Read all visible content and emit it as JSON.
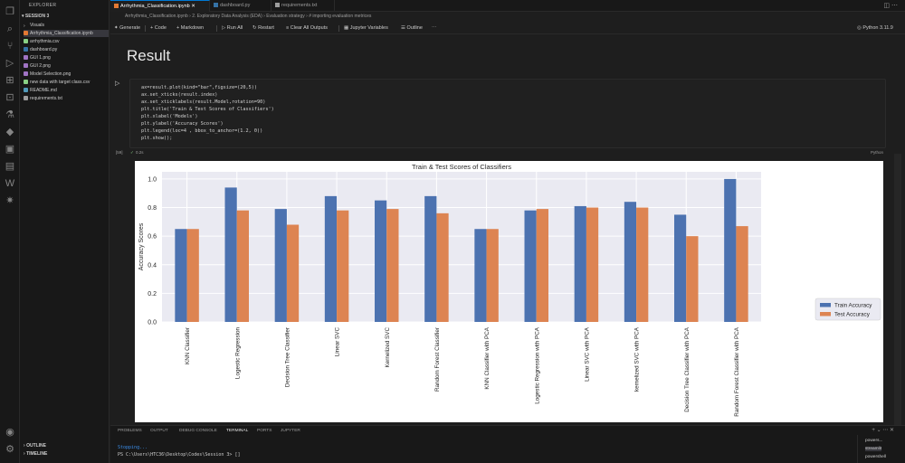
{
  "explorer": {
    "title": "EXPLORER",
    "section": "SESSION 3",
    "items": [
      {
        "label": "Visuals",
        "type": "folder"
      },
      {
        "label": "Arrhythmia_Classification.ipynb",
        "type": "notebook"
      },
      {
        "label": "arrhythmia.csv",
        "type": "csv"
      },
      {
        "label": "dashboard.py",
        "type": "python"
      },
      {
        "label": "GUI 1.png",
        "type": "image"
      },
      {
        "label": "GUI 2.png",
        "type": "image"
      },
      {
        "label": "Model Selection.png",
        "type": "image"
      },
      {
        "label": "new data with target class.csv",
        "type": "csv"
      },
      {
        "label": "README.md",
        "type": "markdown"
      },
      {
        "label": "requirements.txt",
        "type": "text"
      }
    ],
    "outline": "OUTLINE",
    "timeline": "TIMELINE"
  },
  "tabs": [
    {
      "label": "Arrhythmia_Classification.ipynb",
      "active": true
    },
    {
      "label": "dashboard.py",
      "active": false
    },
    {
      "label": "requirements.txt",
      "active": false
    }
  ],
  "breadcrumb": {
    "file": "Arrhythmia_Classification.ipynb",
    "section": "2. Exploratory Data Analysis (EDA)",
    "sub": "Evaluation strategy",
    "cell": "# importing evaluation metrices"
  },
  "toolbar": {
    "generate": "Generate",
    "code": "+ Code",
    "markdown": "+ Markdown",
    "run_all": "Run All",
    "restart": "Restart",
    "clear": "Clear All Outputs",
    "variables": "Jupyter Variables",
    "outline": "Outline",
    "kernel": "Python 3.11.9"
  },
  "heading": "Result",
  "code": {
    "lines": [
      "ax=result.plot(kind=\"bar\",figsize=(20,5))",
      "ax.set_xticks(result.index)",
      "ax.set_xticklabels(result.Model,rotation=90)",
      "plt.title('Train & Test Scores of Classifiers')",
      "plt.xlabel('Models')",
      "plt.ylabel('Accuracy Scores')",
      "plt.legend(loc=4 , bbox_to_anchor=(1.2, 0))",
      "plt.show();"
    ],
    "exec_count": "[59]",
    "exec_time": "0.2s",
    "language": "Python"
  },
  "chart_data": {
    "type": "bar",
    "title": "Train & Test Scores of Classifiers",
    "xlabel": "",
    "ylabel": "Accuracy Scores",
    "ylim": [
      0,
      1.05
    ],
    "yticks": [
      0.0,
      0.2,
      0.4,
      0.6,
      0.8,
      1.0
    ],
    "grid": true,
    "legend_position": "lower-right outside",
    "categories": [
      "KNN Classifier",
      "Logestic Regression",
      "Decision Tree Classifier",
      "Linear SVC",
      "Kernelized SVC",
      "Random Forest Classifier",
      "KNN Classifier with PCA",
      "Logestic Regression with PCA",
      "Linear SVC with PCA",
      "kernelized SVC with PCA",
      "Decision Tree Classifier with PCA",
      "Random Forest Classifier with PCA"
    ],
    "series": [
      {
        "name": "Train Accuracy",
        "color": "#4c72b0",
        "values": [
          0.65,
          0.94,
          0.79,
          0.88,
          0.85,
          0.88,
          0.65,
          0.78,
          0.81,
          0.84,
          0.75,
          1.0
        ]
      },
      {
        "name": "Test Accuracy",
        "color": "#dd8452",
        "values": [
          0.65,
          0.78,
          0.68,
          0.78,
          0.79,
          0.76,
          0.65,
          0.79,
          0.8,
          0.8,
          0.6,
          0.67
        ]
      }
    ]
  },
  "panel": {
    "tabs": [
      "PROBLEMS",
      "OUTPUT",
      "DEBUG CONSOLE",
      "TERMINAL",
      "PORTS",
      "JUPYTER"
    ],
    "active": "TERMINAL",
    "terminal_lines": [
      "Stopping...",
      "PS C:\\Users\\HTC36\\Desktop\\Codes\\Session 3> []"
    ],
    "terminals": [
      "powers...",
      "streamlit",
      "powershell"
    ]
  },
  "colors": {
    "accent": "#0078d4",
    "bg": "#1e1e1e",
    "sidebar": "#181818"
  }
}
